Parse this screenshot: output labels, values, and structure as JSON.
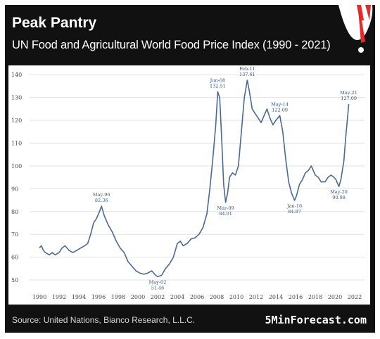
{
  "header": {
    "title": "Peak Pantry",
    "subtitle": "UN Food and Agricultural World Food Price Index (1990 - 2021)"
  },
  "footer": {
    "source": "Source: United Nations, Bianco Research, L.L.C.",
    "brand": "5MinForecast.com"
  },
  "colors": {
    "line": "#4a6a93",
    "grid": "#e2e2e2",
    "frame": "#111111",
    "accent": "#e8272a"
  },
  "gauge_icon": "speedometer-icon",
  "chart_data": {
    "type": "line",
    "title": "UN Food and Agricultural World Food Price Index (1990 - 2021)",
    "xlabel": "",
    "ylabel": "",
    "xlim": [
      1989,
      2023
    ],
    "ylim": [
      46,
      141
    ],
    "grid": "horizontal",
    "xticks": [
      1990,
      1992,
      1994,
      1996,
      1998,
      2000,
      2002,
      2004,
      2006,
      2008,
      2010,
      2012,
      2014,
      2016,
      2018,
      2020,
      2022
    ],
    "yticks": [
      50,
      60,
      70,
      80,
      90,
      100,
      110,
      120,
      130,
      140
    ],
    "series": [
      {
        "x": [
          1990.0,
          1990.2,
          1990.4,
          1990.6,
          1990.8,
          1991.0,
          1991.3,
          1991.6,
          1992.0,
          1992.3,
          1992.6,
          1993.0,
          1993.4,
          1993.8,
          1994.2,
          1994.6,
          1994.9,
          1995.2,
          1995.5,
          1995.8,
          1996.1,
          1996.3,
          1996.6,
          1997.0,
          1997.4,
          1997.8,
          1998.2,
          1998.6,
          1999.0,
          1999.4,
          1999.8,
          2000.2,
          2000.6,
          2001.0,
          2001.4,
          2001.8,
          2002.0,
          2002.4,
          2002.8,
          2003.2,
          2003.6,
          2004.0,
          2004.3,
          2004.6,
          2005.0,
          2005.4,
          2005.8,
          2006.2,
          2006.6,
          2007.0,
          2007.3,
          2007.6,
          2007.9,
          2008.1,
          2008.3,
          2008.5,
          2008.7,
          2008.9,
          2009.1,
          2009.3,
          2009.6,
          2009.9,
          2010.2,
          2010.5,
          2010.8,
          2011.1,
          2011.3,
          2011.6,
          2011.9,
          2012.2,
          2012.5,
          2012.8,
          2013.1,
          2013.4,
          2013.7,
          2014.0,
          2014.4,
          2014.7,
          2015.0,
          2015.3,
          2015.6,
          2015.9,
          2016.1,
          2016.4,
          2016.7,
          2017.0,
          2017.3,
          2017.6,
          2018.0,
          2018.3,
          2018.6,
          2019.0,
          2019.3,
          2019.6,
          2019.9,
          2020.1,
          2020.4,
          2020.6,
          2020.9,
          2021.1,
          2021.4
        ],
        "y": [
          64,
          65,
          63,
          62,
          61.5,
          61,
          62,
          61,
          62,
          64,
          65,
          63,
          62,
          63,
          64,
          65,
          66,
          70,
          75,
          77,
          80,
          82.36,
          78,
          74,
          71,
          67,
          64,
          62,
          58,
          56,
          54,
          53,
          52.5,
          53,
          54,
          52,
          51.46,
          52,
          55,
          57,
          60,
          66,
          67,
          65,
          66,
          68,
          68.5,
          70,
          73,
          79,
          90,
          103,
          118,
          132.51,
          130,
          112,
          92,
          84.01,
          88,
          95,
          97,
          96,
          100,
          115,
          130,
          137.61,
          133,
          125,
          123,
          121,
          119,
          122,
          125,
          121,
          118,
          120,
          122.09,
          115,
          103,
          93,
          88,
          84.87,
          87,
          92,
          94,
          97,
          98,
          100,
          96,
          95,
          93,
          93,
          95,
          96,
          95,
          94,
          90.98,
          94,
          102,
          113,
          127.09
        ]
      }
    ],
    "annotations": [
      {
        "label": "May-96",
        "value": "82.36",
        "x": 1996.3,
        "y": 82.36,
        "side": "above"
      },
      {
        "label": "May-02",
        "value": "51.46",
        "x": 2002.0,
        "y": 51.46,
        "side": "below"
      },
      {
        "label": "Jun-08",
        "value": "132.51",
        "x": 2008.1,
        "y": 132.51,
        "side": "above"
      },
      {
        "label": "Mar-09",
        "value": "84.01",
        "x": 2008.9,
        "y": 84.01,
        "side": "below"
      },
      {
        "label": "Feb-11",
        "value": "137.61",
        "x": 2011.1,
        "y": 137.61,
        "side": "above"
      },
      {
        "label": "May-14",
        "value": "122.09",
        "x": 2014.4,
        "y": 122.09,
        "side": "above"
      },
      {
        "label": "Jan-16",
        "value": "84.87",
        "x": 2015.9,
        "y": 84.87,
        "side": "below"
      },
      {
        "label": "May-20",
        "value": "90.98",
        "x": 2020.4,
        "y": 90.98,
        "side": "below"
      },
      {
        "label": "May-21",
        "value": "127.09",
        "x": 2021.4,
        "y": 127.09,
        "side": "above"
      }
    ]
  }
}
